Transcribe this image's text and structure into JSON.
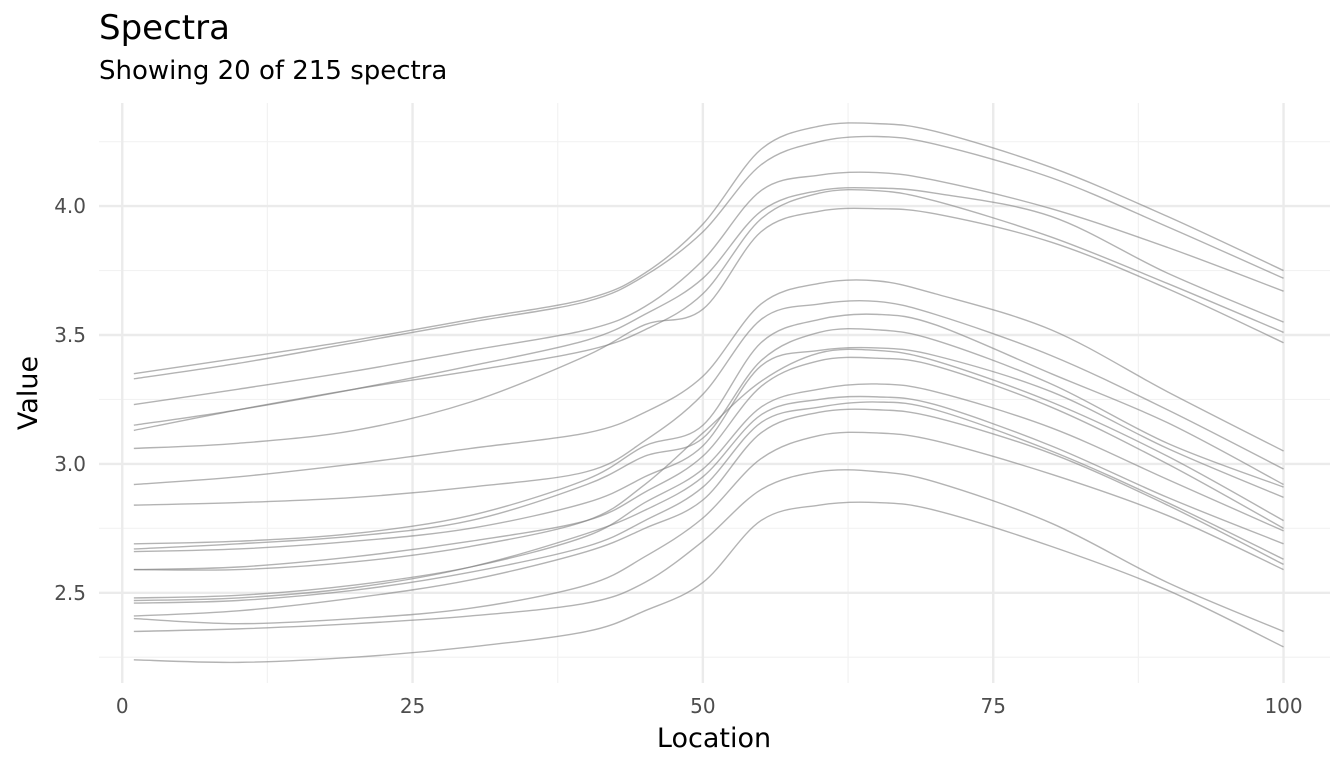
{
  "chart_data": {
    "type": "line",
    "title": "Spectra",
    "subtitle": "Showing 20 of 215 spectra",
    "xlabel": "Location",
    "ylabel": "Value",
    "xlim": [
      -2,
      104
    ],
    "ylim": [
      2.15,
      4.4
    ],
    "x_ticks": [
      0,
      25,
      50,
      75,
      100
    ],
    "y_ticks": [
      2.5,
      3.0,
      3.5,
      4.0
    ],
    "x_tick_labels": [
      "0",
      "25",
      "50",
      "75",
      "100"
    ],
    "y_tick_labels": [
      "2.5",
      "3.0",
      "3.5",
      "4.0"
    ],
    "grid": true,
    "line_color": "#808080",
    "x": [
      1,
      10,
      20,
      30,
      40,
      45,
      50,
      55,
      60,
      65,
      70,
      80,
      90,
      100
    ],
    "series": [
      {
        "values": [
          3.35,
          3.41,
          3.48,
          3.56,
          3.64,
          3.74,
          3.93,
          4.22,
          4.31,
          4.32,
          4.29,
          4.15,
          3.96,
          3.75
        ]
      },
      {
        "values": [
          3.33,
          3.39,
          3.47,
          3.55,
          3.63,
          3.73,
          3.9,
          4.16,
          4.25,
          4.27,
          4.24,
          4.11,
          3.92,
          3.72
        ]
      },
      {
        "values": [
          3.23,
          3.29,
          3.36,
          3.44,
          3.52,
          3.61,
          3.79,
          4.06,
          4.12,
          4.13,
          4.1,
          3.99,
          3.84,
          3.67
        ]
      },
      {
        "values": [
          3.15,
          3.21,
          3.29,
          3.38,
          3.48,
          3.58,
          3.72,
          3.98,
          4.06,
          4.07,
          4.05,
          3.96,
          3.74,
          3.55
        ]
      },
      {
        "values": [
          3.13,
          3.21,
          3.29,
          3.36,
          3.44,
          3.52,
          3.66,
          3.95,
          4.05,
          4.06,
          4.02,
          3.88,
          3.7,
          3.51
        ]
      },
      {
        "values": [
          3.06,
          3.08,
          3.13,
          3.24,
          3.42,
          3.54,
          3.6,
          3.9,
          3.98,
          3.99,
          3.97,
          3.86,
          3.68,
          3.47
        ]
      },
      {
        "values": [
          2.92,
          2.95,
          3.0,
          3.06,
          3.12,
          3.2,
          3.34,
          3.62,
          3.7,
          3.71,
          3.66,
          3.52,
          3.28,
          3.05
        ]
      },
      {
        "values": [
          2.84,
          2.85,
          2.87,
          2.91,
          2.97,
          3.09,
          3.27,
          3.56,
          3.62,
          3.63,
          3.58,
          3.42,
          3.21,
          2.98
        ]
      },
      {
        "values": [
          2.69,
          2.7,
          2.73,
          2.8,
          2.94,
          3.07,
          3.15,
          3.47,
          3.56,
          3.58,
          3.54,
          3.35,
          3.16,
          2.92
        ]
      },
      {
        "values": [
          2.67,
          2.69,
          2.72,
          2.78,
          2.92,
          3.03,
          3.1,
          3.4,
          3.51,
          3.52,
          3.48,
          3.31,
          3.08,
          2.91
        ]
      },
      {
        "values": [
          2.66,
          2.67,
          2.7,
          2.75,
          2.85,
          2.95,
          3.07,
          3.38,
          3.44,
          3.45,
          3.42,
          3.28,
          3.06,
          2.87
        ]
      },
      {
        "values": [
          2.59,
          2.59,
          2.62,
          2.68,
          2.78,
          2.92,
          3.12,
          3.32,
          3.43,
          3.44,
          3.4,
          3.24,
          3.03,
          2.78
        ]
      },
      {
        "values": [
          2.59,
          2.6,
          2.64,
          2.7,
          2.78,
          2.89,
          3.03,
          3.3,
          3.4,
          3.41,
          3.38,
          3.22,
          3.0,
          2.75
        ]
      },
      {
        "values": [
          2.48,
          2.49,
          2.53,
          2.6,
          2.72,
          2.85,
          2.98,
          3.22,
          3.29,
          3.31,
          3.28,
          3.14,
          2.94,
          2.74
        ]
      },
      {
        "values": [
          2.47,
          2.48,
          2.52,
          2.6,
          2.73,
          2.82,
          2.95,
          3.19,
          3.25,
          3.26,
          3.23,
          3.07,
          2.87,
          2.69
        ]
      },
      {
        "values": [
          2.46,
          2.47,
          2.51,
          2.58,
          2.68,
          2.78,
          2.91,
          3.16,
          3.22,
          3.24,
          3.21,
          3.05,
          2.85,
          2.63
        ]
      },
      {
        "values": [
          2.41,
          2.43,
          2.48,
          2.55,
          2.66,
          2.75,
          2.86,
          3.12,
          3.2,
          3.21,
          3.18,
          3.04,
          2.84,
          2.61
        ]
      },
      {
        "values": [
          2.4,
          2.38,
          2.4,
          2.44,
          2.53,
          2.64,
          2.79,
          3.02,
          3.11,
          3.12,
          3.09,
          2.96,
          2.8,
          2.59
        ]
      },
      {
        "values": [
          2.35,
          2.36,
          2.38,
          2.41,
          2.46,
          2.54,
          2.7,
          2.9,
          2.97,
          2.97,
          2.93,
          2.77,
          2.54,
          2.35
        ]
      },
      {
        "values": [
          2.24,
          2.23,
          2.25,
          2.29,
          2.35,
          2.43,
          2.54,
          2.78,
          2.84,
          2.85,
          2.82,
          2.68,
          2.51,
          2.29
        ]
      }
    ]
  }
}
